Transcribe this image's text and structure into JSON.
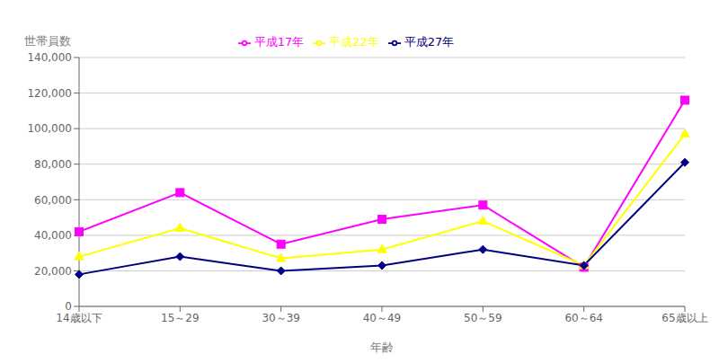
{
  "chart_data": {
    "type": "line",
    "xlabel": "年齢",
    "ylabel": "世帯員数",
    "categories": [
      "14歳以下",
      "15～29",
      "30～39",
      "40～49",
      "50～59",
      "60～64",
      "65歳以上"
    ],
    "series": [
      {
        "name": "平成17年",
        "color": "#FF00FF",
        "marker": "square",
        "values": [
          42000,
          64000,
          35000,
          49000,
          57000,
          22000,
          116000
        ]
      },
      {
        "name": "平成22年",
        "color": "#FFFF00",
        "marker": "triangle",
        "values": [
          28000,
          44000,
          27000,
          32000,
          48000,
          23000,
          97000
        ]
      },
      {
        "name": "平成27年",
        "color": "#000080",
        "marker": "diamond",
        "values": [
          18000,
          28000,
          20000,
          23000,
          32000,
          23000,
          81000
        ]
      }
    ],
    "ylim": [
      0,
      140000
    ],
    "yticks": [
      0,
      {
        "value": 20000,
        "label": "20,000"
      },
      {
        "value": 40000,
        "label": "40,000"
      },
      {
        "value": 60000,
        "label": "60,000"
      },
      {
        "value": 80000,
        "label": "80,000"
      },
      {
        "value": 100000,
        "label": "100,000"
      },
      {
        "value": 120000,
        "label": "120,000"
      },
      {
        "value": 140000,
        "label": "140,000"
      }
    ],
    "grid": true,
    "legend": "top"
  }
}
